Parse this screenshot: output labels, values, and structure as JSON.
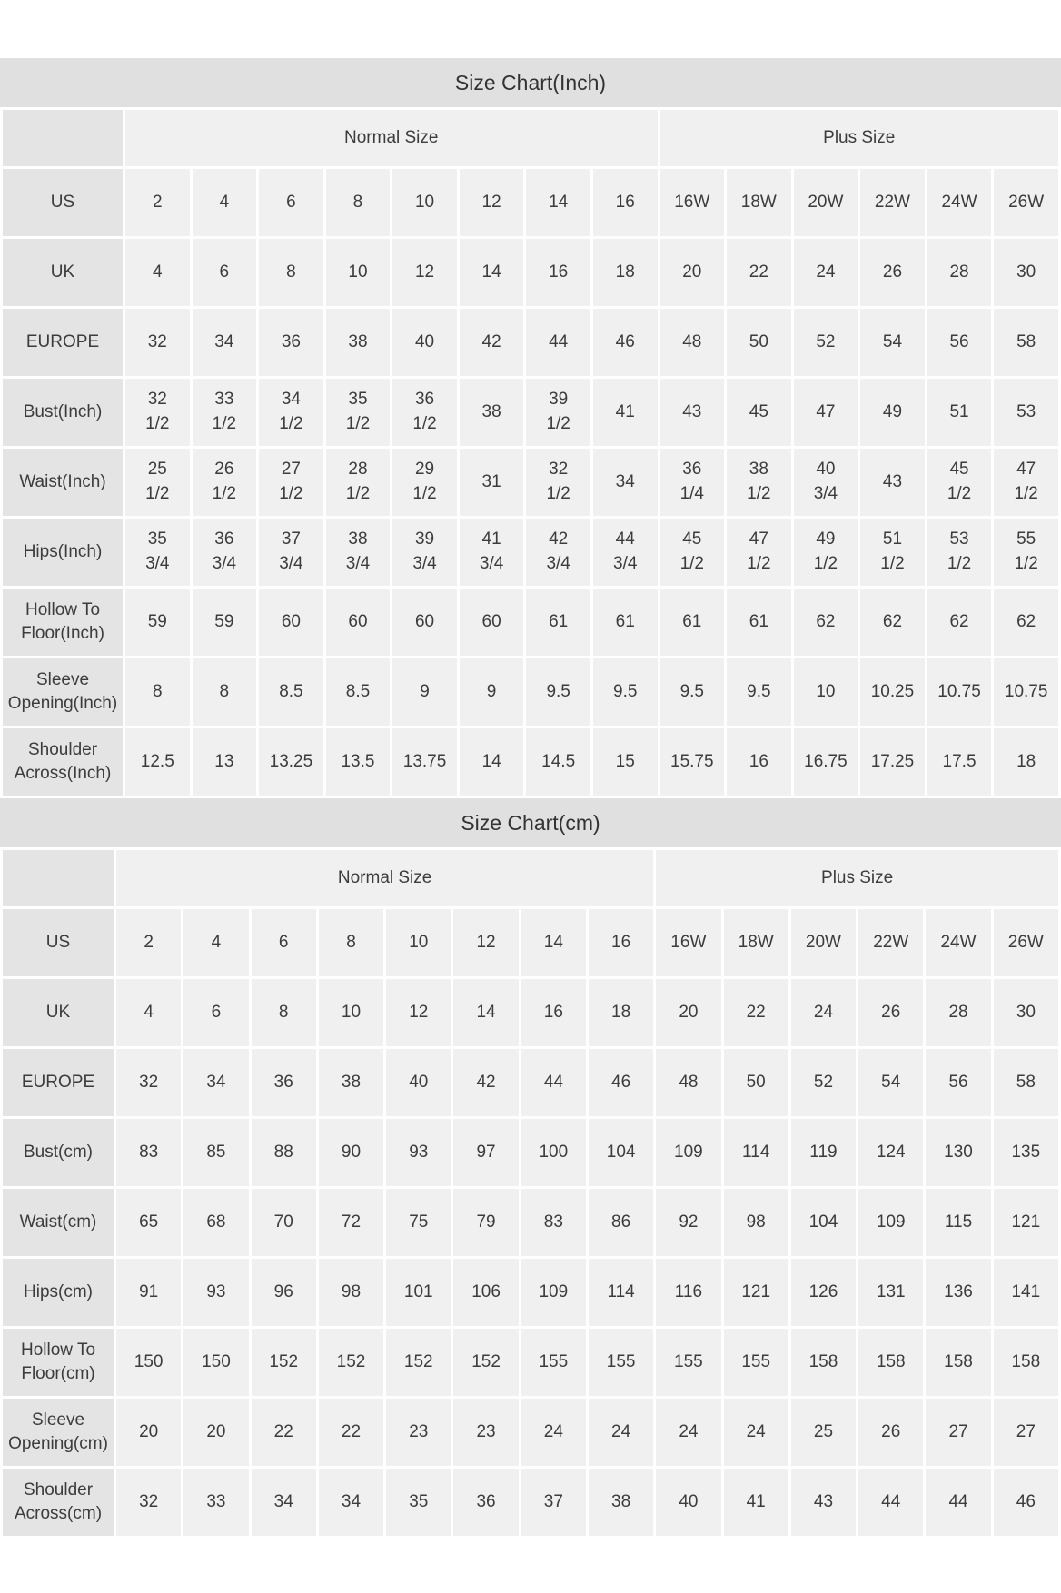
{
  "colors": {
    "title_bar_bg": "#e0e0e0",
    "label_cell_bg": "#e4e4e4",
    "data_cell_bg": "#f0f0f0",
    "text": "#3c3c3c",
    "page_bg": "#ffffff"
  },
  "charts": [
    {
      "title": "Size Chart(Inch)",
      "group_headers": [
        {
          "label": "Normal Size",
          "span": 8
        },
        {
          "label": "Plus Size",
          "span": 6
        }
      ],
      "rows": [
        {
          "label": "US",
          "values": [
            "2",
            "4",
            "6",
            "8",
            "10",
            "12",
            "14",
            "16",
            "16W",
            "18W",
            "20W",
            "22W",
            "24W",
            "26W"
          ]
        },
        {
          "label": "UK",
          "values": [
            "4",
            "6",
            "8",
            "10",
            "12",
            "14",
            "16",
            "18",
            "20",
            "22",
            "24",
            "26",
            "28",
            "30"
          ]
        },
        {
          "label": "EUROPE",
          "values": [
            "32",
            "34",
            "36",
            "38",
            "40",
            "42",
            "44",
            "46",
            "48",
            "50",
            "52",
            "54",
            "56",
            "58"
          ]
        },
        {
          "label": "Bust(Inch)",
          "values": [
            "32\n1/2",
            "33\n1/2",
            "34\n1/2",
            "35\n1/2",
            "36\n1/2",
            "38",
            "39\n1/2",
            "41",
            "43",
            "45",
            "47",
            "49",
            "51",
            "53"
          ]
        },
        {
          "label": "Waist(Inch)",
          "values": [
            "25\n1/2",
            "26\n1/2",
            "27\n1/2",
            "28\n1/2",
            "29\n1/2",
            "31",
            "32\n1/2",
            "34",
            "36\n1/4",
            "38\n1/2",
            "40\n3/4",
            "43",
            "45\n1/2",
            "47\n1/2"
          ]
        },
        {
          "label": "Hips(Inch)",
          "values": [
            "35\n3/4",
            "36\n3/4",
            "37\n3/4",
            "38\n3/4",
            "39\n3/4",
            "41\n3/4",
            "42\n3/4",
            "44\n3/4",
            "45\n1/2",
            "47\n1/2",
            "49\n1/2",
            "51\n1/2",
            "53\n1/2",
            "55\n1/2"
          ]
        },
        {
          "label": "Hollow To Floor(Inch)",
          "values": [
            "59",
            "59",
            "60",
            "60",
            "60",
            "60",
            "61",
            "61",
            "61",
            "61",
            "62",
            "62",
            "62",
            "62"
          ]
        },
        {
          "label": "Sleeve Opening(Inch)",
          "values": [
            "8",
            "8",
            "8.5",
            "8.5",
            "9",
            "9",
            "9.5",
            "9.5",
            "9.5",
            "9.5",
            "10",
            "10.25",
            "10.75",
            "10.75"
          ]
        },
        {
          "label": "Shoulder Across(Inch)",
          "values": [
            "12.5",
            "13",
            "13.25",
            "13.5",
            "13.75",
            "14",
            "14.5",
            "15",
            "15.75",
            "16",
            "16.75",
            "17.25",
            "17.5",
            "18"
          ]
        }
      ]
    },
    {
      "title": "Size Chart(cm)",
      "group_headers": [
        {
          "label": "Normal Size",
          "span": 8
        },
        {
          "label": "Plus Size",
          "span": 6
        }
      ],
      "rows": [
        {
          "label": "US",
          "values": [
            "2",
            "4",
            "6",
            "8",
            "10",
            "12",
            "14",
            "16",
            "16W",
            "18W",
            "20W",
            "22W",
            "24W",
            "26W"
          ]
        },
        {
          "label": "UK",
          "values": [
            "4",
            "6",
            "8",
            "10",
            "12",
            "14",
            "16",
            "18",
            "20",
            "22",
            "24",
            "26",
            "28",
            "30"
          ]
        },
        {
          "label": "EUROPE",
          "values": [
            "32",
            "34",
            "36",
            "38",
            "40",
            "42",
            "44",
            "46",
            "48",
            "50",
            "52",
            "54",
            "56",
            "58"
          ]
        },
        {
          "label": "Bust(cm)",
          "values": [
            "83",
            "85",
            "88",
            "90",
            "93",
            "97",
            "100",
            "104",
            "109",
            "114",
            "119",
            "124",
            "130",
            "135"
          ]
        },
        {
          "label": "Waist(cm)",
          "values": [
            "65",
            "68",
            "70",
            "72",
            "75",
            "79",
            "83",
            "86",
            "92",
            "98",
            "104",
            "109",
            "115",
            "121"
          ]
        },
        {
          "label": "Hips(cm)",
          "values": [
            "91",
            "93",
            "96",
            "98",
            "101",
            "106",
            "109",
            "114",
            "116",
            "121",
            "126",
            "131",
            "136",
            "141"
          ]
        },
        {
          "label": "Hollow To Floor(cm)",
          "values": [
            "150",
            "150",
            "152",
            "152",
            "152",
            "152",
            "155",
            "155",
            "155",
            "155",
            "158",
            "158",
            "158",
            "158"
          ]
        },
        {
          "label": "Sleeve Opening(cm)",
          "values": [
            "20",
            "20",
            "22",
            "22",
            "23",
            "23",
            "24",
            "24",
            "24",
            "24",
            "25",
            "26",
            "27",
            "27"
          ]
        },
        {
          "label": "Shoulder Across(cm)",
          "values": [
            "32",
            "33",
            "34",
            "34",
            "35",
            "36",
            "37",
            "38",
            "40",
            "41",
            "43",
            "44",
            "44",
            "46"
          ]
        }
      ]
    }
  ]
}
